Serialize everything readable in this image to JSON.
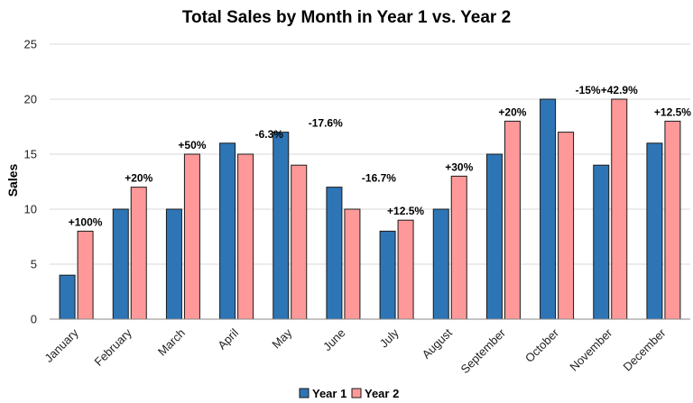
{
  "chart_data": {
    "type": "bar",
    "title": "Total Sales by Month in Year 1 vs. Year 2",
    "xlabel": "",
    "ylabel": "Sales",
    "ylim": [
      0,
      25
    ],
    "yticks": [
      0,
      5,
      10,
      15,
      20,
      25
    ],
    "grid": true,
    "legend_position": "bottom",
    "categories": [
      "January",
      "February",
      "March",
      "April",
      "May",
      "June",
      "July",
      "August",
      "September",
      "October",
      "November",
      "December"
    ],
    "series": [
      {
        "name": "Year 1",
        "color": "#2e75b6",
        "values": [
          4,
          10,
          10,
          16,
          17,
          12,
          8,
          10,
          15,
          20,
          14,
          16
        ]
      },
      {
        "name": "Year 2",
        "color": "#ff9999",
        "values": [
          8,
          12,
          15,
          15,
          14,
          10,
          9,
          13,
          18,
          17,
          20,
          18
        ]
      }
    ],
    "annotations": [
      "+100%",
      "+20%",
      "+50%",
      "-6.3%",
      "-17.6%",
      "-16.7%",
      "+12.5%",
      "+30%",
      "+20%",
      "-15%",
      "+42.9%",
      "+12.5%"
    ]
  }
}
